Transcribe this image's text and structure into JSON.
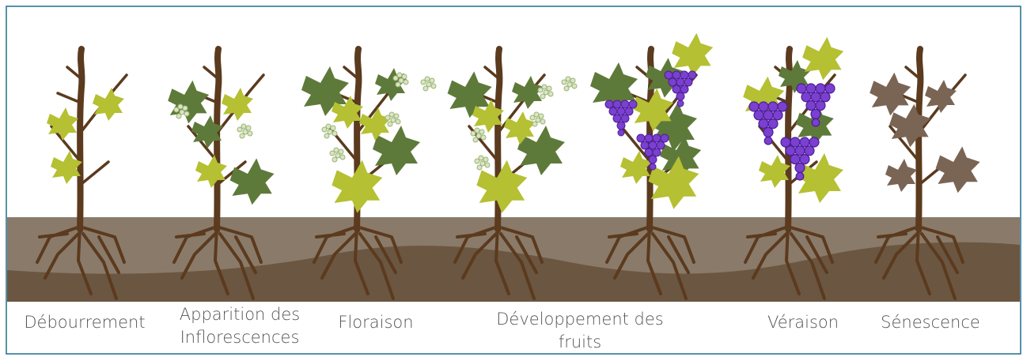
{
  "stages": [
    {
      "lines": [
        "Débourrement"
      ]
    },
    {
      "lines": [
        "Apparition des",
        "Inflorescences"
      ]
    },
    {
      "lines": [
        "Floraison"
      ]
    },
    {
      "lines": [
        "Développement des",
        "fruits"
      ]
    },
    {
      "lines": [
        "Véraison"
      ]
    },
    {
      "lines": [
        "Sénescence"
      ]
    }
  ]
}
